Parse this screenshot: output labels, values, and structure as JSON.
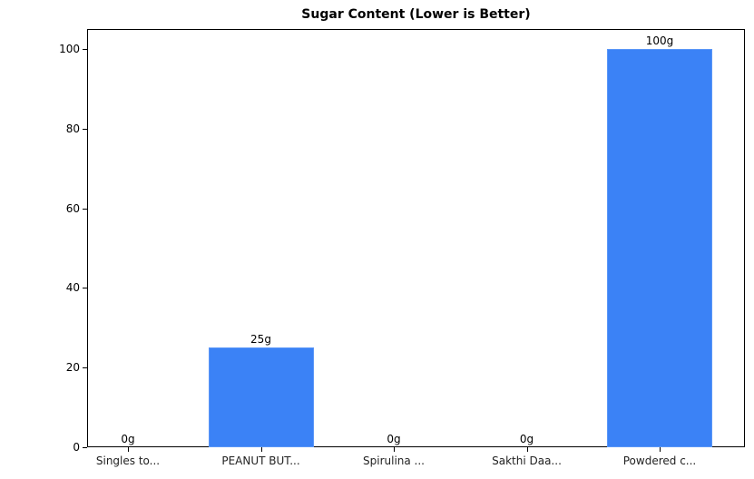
{
  "chart_data": {
    "type": "bar",
    "title": "Sugar Content (Lower is Better)",
    "xlabel": "",
    "ylabel": "",
    "categories": [
      "Singles to...",
      "PEANUT BUT...",
      "Spirulina ...",
      "Sakthi Daa...",
      "Powdered c..."
    ],
    "values": [
      0,
      25,
      0,
      0,
      100
    ],
    "value_labels": [
      "0g",
      "25g",
      "0g",
      "0g",
      "100g"
    ],
    "ylim": [
      0,
      105
    ],
    "yticks": [
      0,
      20,
      40,
      60,
      80,
      100
    ],
    "grid": false,
    "bar_color": "#3b82f6",
    "legend": null
  }
}
